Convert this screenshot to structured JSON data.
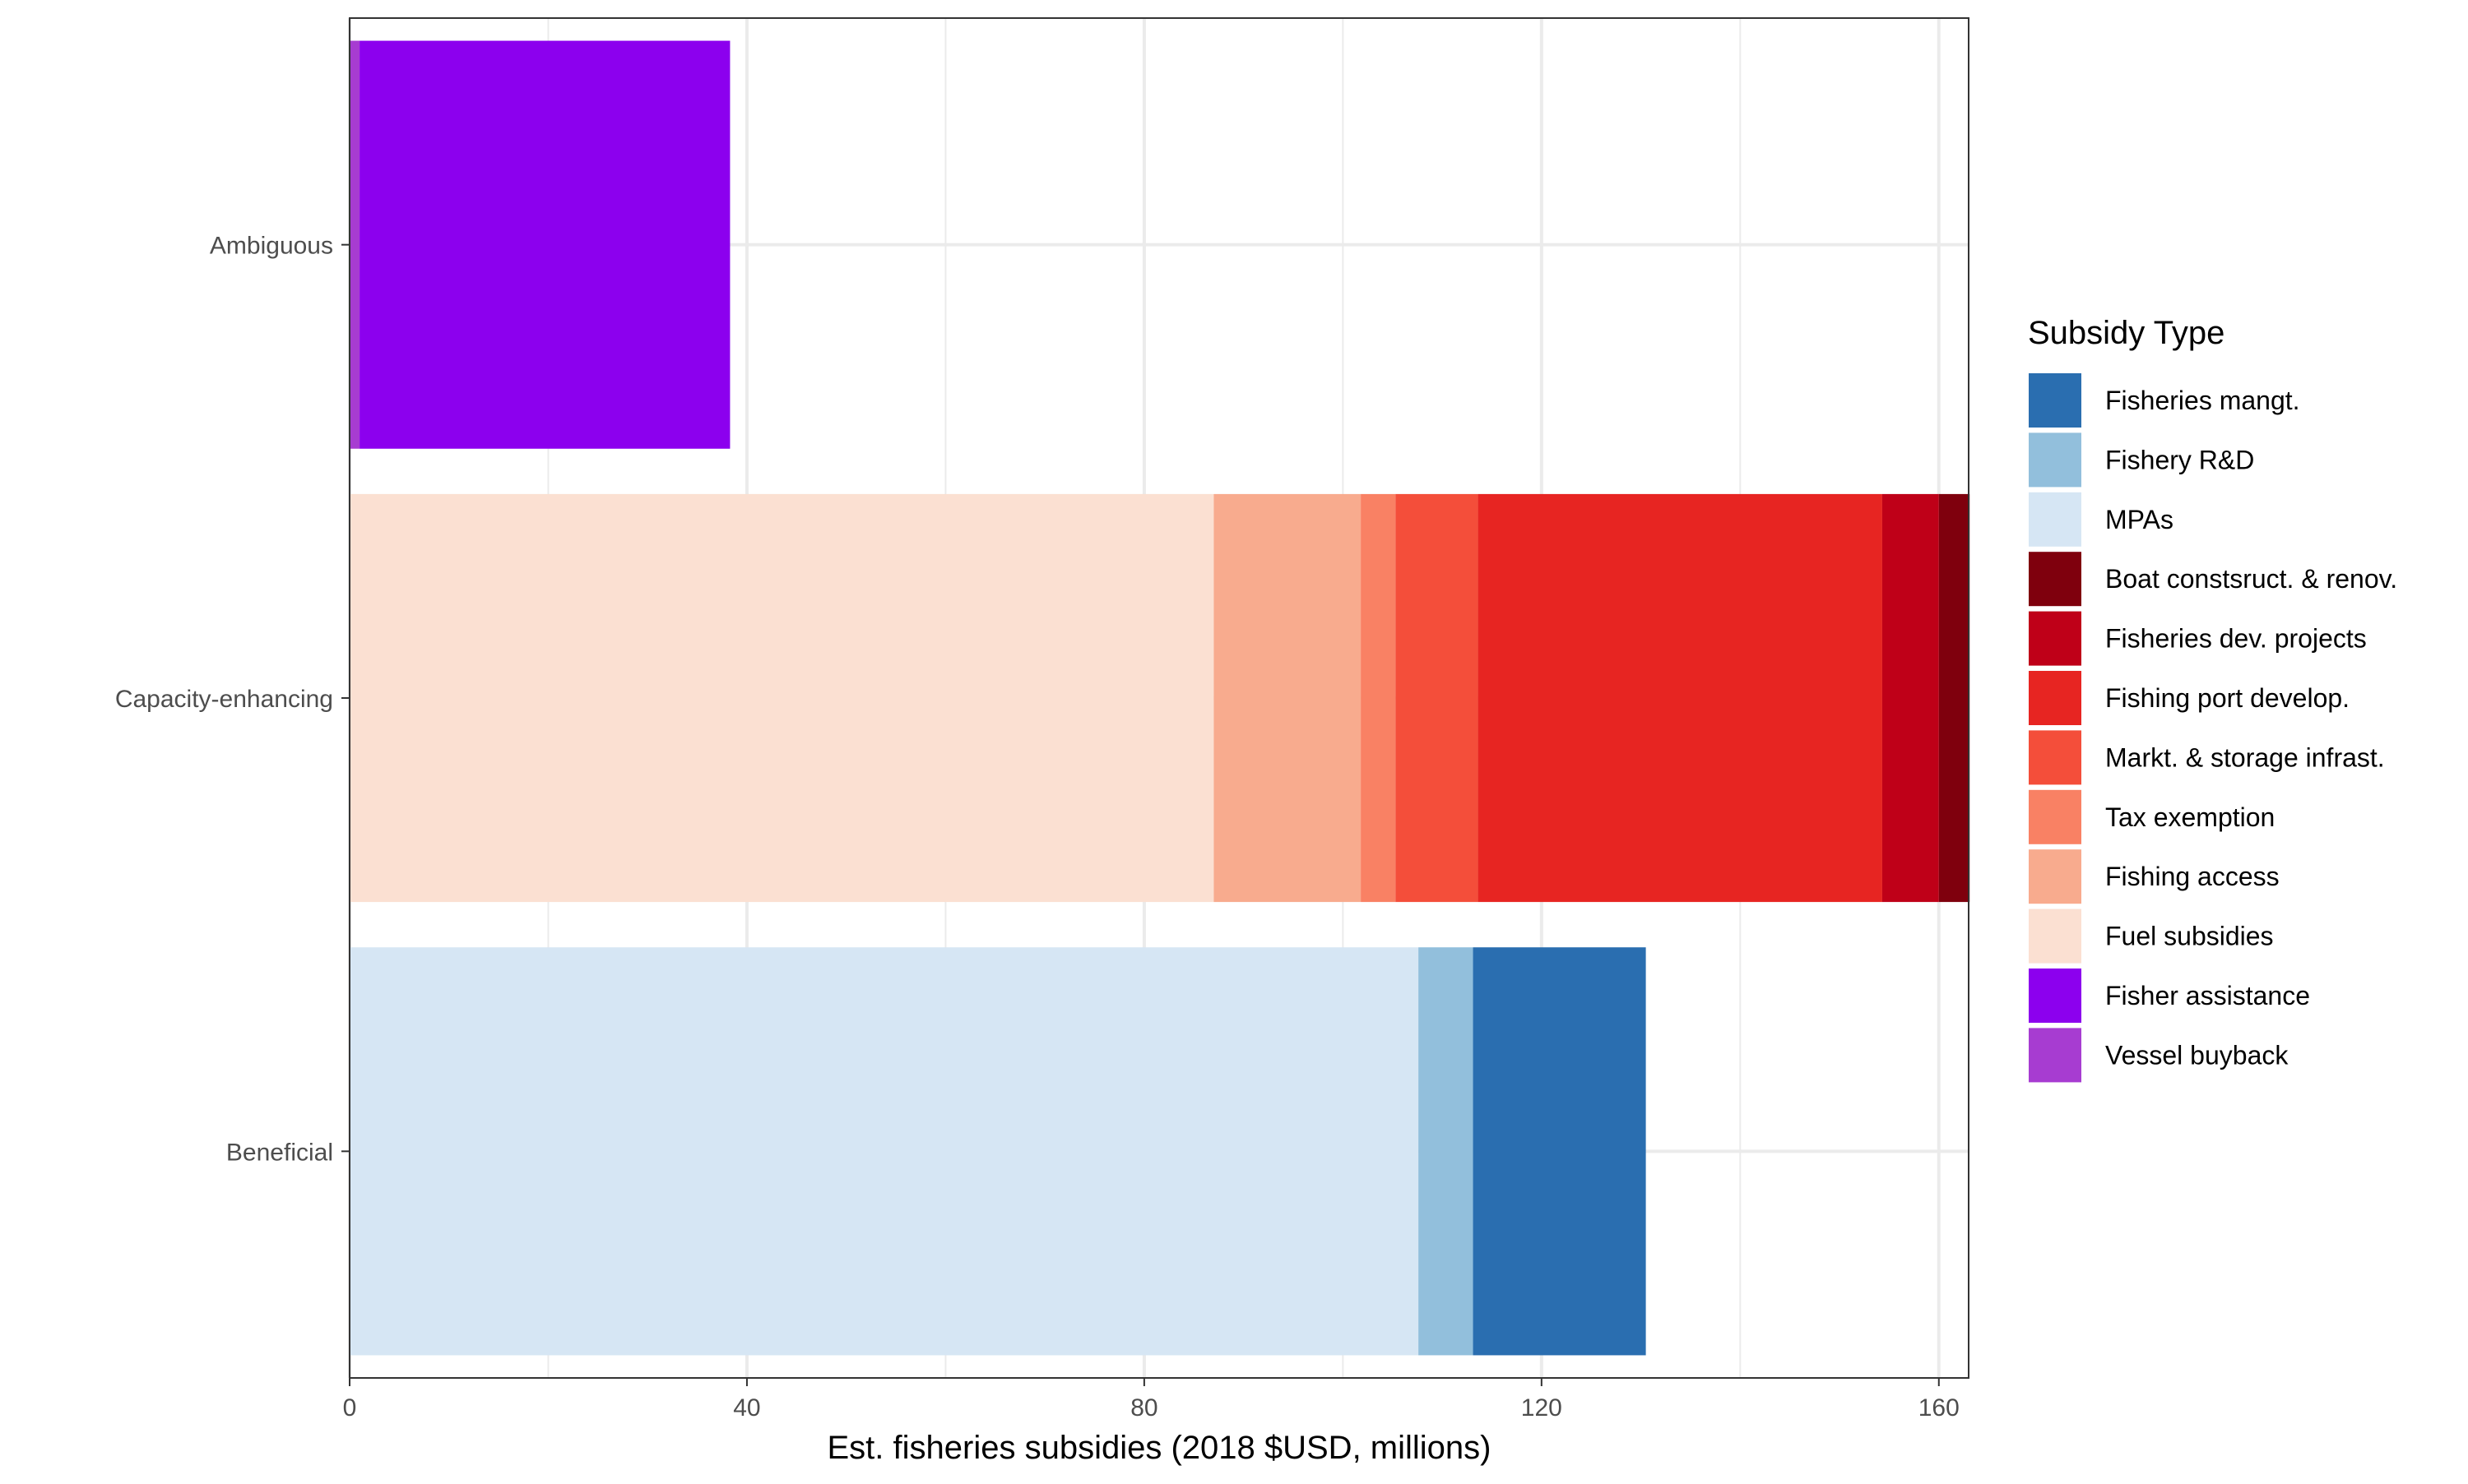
{
  "chart_data": {
    "type": "bar",
    "orientation": "horizontal",
    "stacked": true,
    "categories": [
      "Ambiguous",
      "Capacity-enhancing",
      "Beneficial"
    ],
    "xlabel": "Est. fisheries subsidies (2018 $USD, millions)",
    "ylabel": "",
    "xlim": [
      0,
      163
    ],
    "x_ticks": [
      0,
      40,
      80,
      120,
      160
    ],
    "x_tick_labels": [
      "0",
      "40",
      "80",
      "120",
      "160"
    ],
    "grid": true,
    "legend": {
      "title": "Subsidy Type",
      "position": "right",
      "entries": [
        {
          "label": "Fisheries mangt.",
          "color": "#2a6eb0"
        },
        {
          "label": "Fishery R&D",
          "color": "#92bfdc"
        },
        {
          "label": "MPAs",
          "color": "#d6e6f4"
        },
        {
          "label": "Boat constsruct. & renov.",
          "color": "#7f000d"
        },
        {
          "label": "Fisheries dev. projects",
          "color": "#bf0018"
        },
        {
          "label": "Fishing port develop.",
          "color": "#e72522"
        },
        {
          "label": "Markt. & storage infrast.",
          "color": "#f44e3a"
        },
        {
          "label": "Tax exemption",
          "color": "#f98164"
        },
        {
          "label": "Fishing access",
          "color": "#f8ab8e"
        },
        {
          "label": "Fuel subsidies",
          "color": "#fbe0d2"
        },
        {
          "label": "Fisher assistance",
          "color": "#8c00ee"
        },
        {
          "label": "Vessel buyback",
          "color": "#a73cd1"
        }
      ]
    },
    "series": [
      {
        "name": "Vessel buyback",
        "color": "#a73cd1",
        "values": [
          1.0,
          0,
          0
        ]
      },
      {
        "name": "Fisher assistance",
        "color": "#8c00ee",
        "values": [
          37.3,
          0,
          0
        ]
      },
      {
        "name": "Fuel subsidies",
        "color": "#fbe0d2",
        "values": [
          0,
          87.0,
          0
        ]
      },
      {
        "name": "Fishing access",
        "color": "#f8ab8e",
        "values": [
          0,
          14.8,
          0
        ]
      },
      {
        "name": "Tax exemption",
        "color": "#f98164",
        "values": [
          0,
          3.5,
          0
        ]
      },
      {
        "name": "Markt. & storage infrast.",
        "color": "#f44e3a",
        "values": [
          0,
          8.3,
          0
        ]
      },
      {
        "name": "Fishing port develop.",
        "color": "#e72522",
        "values": [
          0,
          40.7,
          0
        ]
      },
      {
        "name": "Fisheries dev. projects",
        "color": "#bf0018",
        "values": [
          0,
          5.7,
          0
        ]
      },
      {
        "name": "Boat constsruct. & renov.",
        "color": "#7f000d",
        "values": [
          0,
          3.1,
          0
        ]
      },
      {
        "name": "MPAs",
        "color": "#d6e6f4",
        "values": [
          0,
          0,
          107.6
        ]
      },
      {
        "name": "Fishery R&D",
        "color": "#92bfdc",
        "values": [
          0,
          0,
          5.5
        ]
      },
      {
        "name": "Fisheries mangt.",
        "color": "#2a6eb0",
        "values": [
          0,
          0,
          17.4
        ]
      }
    ]
  }
}
